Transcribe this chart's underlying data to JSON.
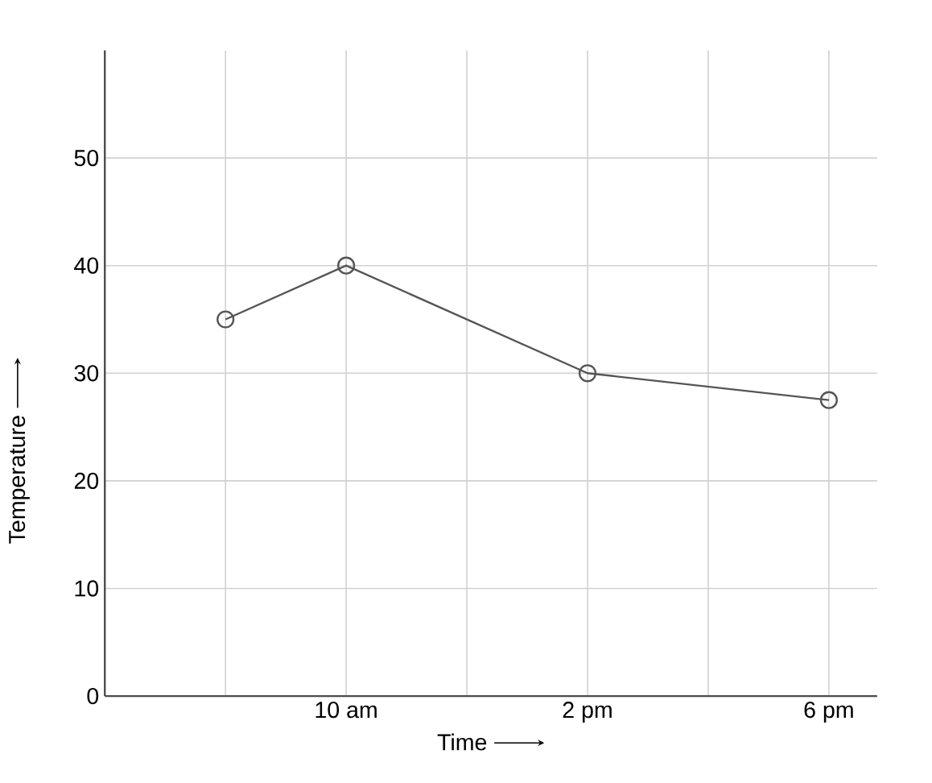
{
  "chart_data": {
    "type": "line",
    "xlabel": "Time",
    "ylabel": "Temperature",
    "categories": [
      null,
      "10 am",
      null,
      "2 pm",
      null,
      "6 pm"
    ],
    "series": [
      {
        "color": "#555555",
        "values": [
          35,
          40,
          null,
          30,
          null,
          27.5
        ]
      }
    ],
    "ylim": [
      0,
      60
    ],
    "yticks": [
      0,
      10,
      20,
      30,
      40,
      50
    ],
    "grid": true,
    "marker": "circle",
    "line_style": "solid"
  }
}
